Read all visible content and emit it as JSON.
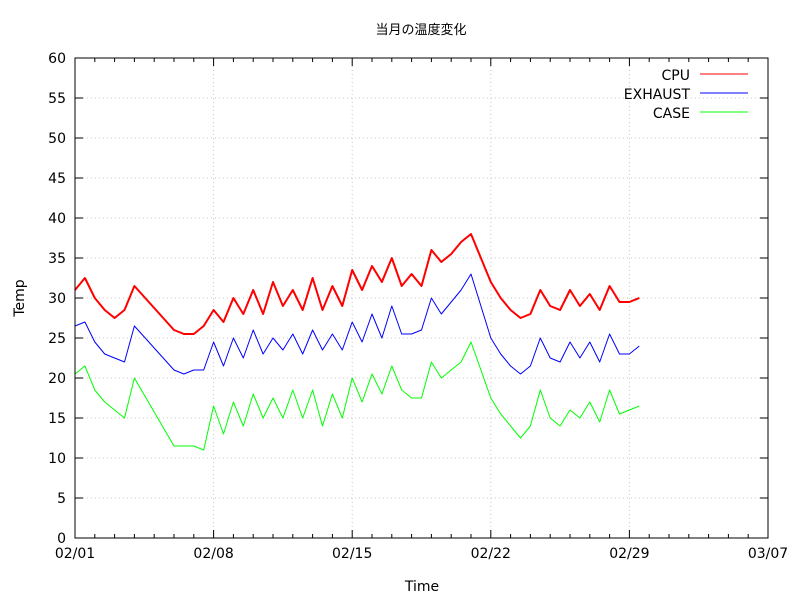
{
  "chart_data": {
    "type": "line",
    "title": "当月の温度変化",
    "xlabel": "Time",
    "ylabel": "Temp",
    "ylim": [
      0,
      60
    ],
    "xlim": [
      "2024-02-01",
      "2024-03-07"
    ],
    "yticks": [
      0,
      5,
      10,
      15,
      20,
      25,
      30,
      35,
      40,
      45,
      50,
      55,
      60
    ],
    "xtick_labels": [
      "02/01",
      "02/08",
      "02/15",
      "02/22",
      "02/29",
      "03/07"
    ],
    "grid": true,
    "legend_position": "top-right",
    "series": [
      {
        "name": "CPU",
        "color": "#ff0000",
        "points": [
          [
            "2024-02-01",
            31
          ],
          [
            "2024-02-01T12",
            32.5
          ],
          [
            "2024-02-02",
            30
          ],
          [
            "2024-02-02T12",
            28.5
          ],
          [
            "2024-02-03",
            27.5
          ],
          [
            "2024-02-03T12",
            28.5
          ],
          [
            "2024-02-04",
            31.5
          ],
          [
            "2024-02-06",
            26
          ],
          [
            "2024-02-06T12",
            25.5
          ],
          [
            "2024-02-07",
            25.5
          ],
          [
            "2024-02-07T12",
            26.5
          ],
          [
            "2024-02-08",
            28.5
          ],
          [
            "2024-02-08T12",
            27
          ],
          [
            "2024-02-09",
            30
          ],
          [
            "2024-02-09T12",
            28
          ],
          [
            "2024-02-10",
            31
          ],
          [
            "2024-02-10T12",
            28
          ],
          [
            "2024-02-11",
            32
          ],
          [
            "2024-02-11T12",
            29
          ],
          [
            "2024-02-12",
            31
          ],
          [
            "2024-02-12T12",
            28.5
          ],
          [
            "2024-02-13",
            32.5
          ],
          [
            "2024-02-13T12",
            28.5
          ],
          [
            "2024-02-14",
            31.5
          ],
          [
            "2024-02-14T12",
            29
          ],
          [
            "2024-02-15",
            33.5
          ],
          [
            "2024-02-15T12",
            31
          ],
          [
            "2024-02-16",
            34
          ],
          [
            "2024-02-16T12",
            32
          ],
          [
            "2024-02-17",
            35
          ],
          [
            "2024-02-17T12",
            31.5
          ],
          [
            "2024-02-18",
            33
          ],
          [
            "2024-02-18T12",
            31.5
          ],
          [
            "2024-02-19",
            36
          ],
          [
            "2024-02-19T12",
            34.5
          ],
          [
            "2024-02-20",
            35.5
          ],
          [
            "2024-02-20T12",
            37
          ],
          [
            "2024-02-21",
            38
          ],
          [
            "2024-02-21T12",
            35
          ],
          [
            "2024-02-22",
            32
          ],
          [
            "2024-02-22T12",
            30
          ],
          [
            "2024-02-23",
            28.5
          ],
          [
            "2024-02-23T12",
            27.5
          ],
          [
            "2024-02-24",
            28
          ],
          [
            "2024-02-24T12",
            31
          ],
          [
            "2024-02-25",
            29
          ],
          [
            "2024-02-25T12",
            28.5
          ],
          [
            "2024-02-26",
            31
          ],
          [
            "2024-02-26T12",
            29
          ],
          [
            "2024-02-27",
            30.5
          ],
          [
            "2024-02-27T12",
            28.5
          ],
          [
            "2024-02-28",
            31.5
          ],
          [
            "2024-02-28T12",
            29.5
          ],
          [
            "2024-02-29",
            29.5
          ],
          [
            "2024-02-29T12",
            30
          ]
        ]
      },
      {
        "name": "EXHAUST",
        "color": "#0000ff",
        "points": [
          [
            "2024-02-01",
            26.5
          ],
          [
            "2024-02-01T12",
            27
          ],
          [
            "2024-02-02",
            24.5
          ],
          [
            "2024-02-02T12",
            23
          ],
          [
            "2024-02-03",
            22.5
          ],
          [
            "2024-02-03T12",
            22
          ],
          [
            "2024-02-04",
            26.5
          ],
          [
            "2024-02-06",
            21
          ],
          [
            "2024-02-06T12",
            20.5
          ],
          [
            "2024-02-07",
            21
          ],
          [
            "2024-02-07T12",
            21
          ],
          [
            "2024-02-08",
            24.5
          ],
          [
            "2024-02-08T12",
            21.5
          ],
          [
            "2024-02-09",
            25
          ],
          [
            "2024-02-09T12",
            22.5
          ],
          [
            "2024-02-10",
            26
          ],
          [
            "2024-02-10T12",
            23
          ],
          [
            "2024-02-11",
            25
          ],
          [
            "2024-02-11T12",
            23.5
          ],
          [
            "2024-02-12",
            25.5
          ],
          [
            "2024-02-12T12",
            23
          ],
          [
            "2024-02-13",
            26
          ],
          [
            "2024-02-13T12",
            23.5
          ],
          [
            "2024-02-14",
            25.5
          ],
          [
            "2024-02-14T12",
            23.5
          ],
          [
            "2024-02-15",
            27
          ],
          [
            "2024-02-15T12",
            24.5
          ],
          [
            "2024-02-16",
            28
          ],
          [
            "2024-02-16T12",
            25
          ],
          [
            "2024-02-17",
            29
          ],
          [
            "2024-02-17T12",
            25.5
          ],
          [
            "2024-02-18",
            25.5
          ],
          [
            "2024-02-18T12",
            26
          ],
          [
            "2024-02-19",
            30
          ],
          [
            "2024-02-19T12",
            28
          ],
          [
            "2024-02-20",
            29.5
          ],
          [
            "2024-02-20T12",
            31
          ],
          [
            "2024-02-21",
            33
          ],
          [
            "2024-02-21T12",
            29
          ],
          [
            "2024-02-22",
            25
          ],
          [
            "2024-02-22T12",
            23
          ],
          [
            "2024-02-23",
            21.5
          ],
          [
            "2024-02-23T12",
            20.5
          ],
          [
            "2024-02-24",
            21.5
          ],
          [
            "2024-02-24T12",
            25
          ],
          [
            "2024-02-25",
            22.5
          ],
          [
            "2024-02-25T12",
            22
          ],
          [
            "2024-02-26",
            24.5
          ],
          [
            "2024-02-26T12",
            22.5
          ],
          [
            "2024-02-27",
            24.5
          ],
          [
            "2024-02-27T12",
            22
          ],
          [
            "2024-02-28",
            25.5
          ],
          [
            "2024-02-28T12",
            23
          ],
          [
            "2024-02-29",
            23
          ],
          [
            "2024-02-29T12",
            24
          ]
        ]
      },
      {
        "name": "CASE",
        "color": "#00ff00",
        "points": [
          [
            "2024-02-01",
            20.5
          ],
          [
            "2024-02-01T12",
            21.5
          ],
          [
            "2024-02-02",
            18.5
          ],
          [
            "2024-02-02T12",
            17
          ],
          [
            "2024-02-03",
            16
          ],
          [
            "2024-02-03T12",
            15
          ],
          [
            "2024-02-04",
            20
          ],
          [
            "2024-02-06",
            11.5
          ],
          [
            "2024-02-06T12",
            11.5
          ],
          [
            "2024-02-07",
            11.5
          ],
          [
            "2024-02-07T12",
            11
          ],
          [
            "2024-02-08",
            16.5
          ],
          [
            "2024-02-08T12",
            13
          ],
          [
            "2024-02-09",
            17
          ],
          [
            "2024-02-09T12",
            14
          ],
          [
            "2024-02-10",
            18
          ],
          [
            "2024-02-10T12",
            15
          ],
          [
            "2024-02-11",
            17.5
          ],
          [
            "2024-02-11T12",
            15
          ],
          [
            "2024-02-12",
            18.5
          ],
          [
            "2024-02-12T12",
            15
          ],
          [
            "2024-02-13",
            18.5
          ],
          [
            "2024-02-13T12",
            14
          ],
          [
            "2024-02-14",
            18
          ],
          [
            "2024-02-14T12",
            15
          ],
          [
            "2024-02-15",
            20
          ],
          [
            "2024-02-15T12",
            17
          ],
          [
            "2024-02-16",
            20.5
          ],
          [
            "2024-02-16T12",
            18
          ],
          [
            "2024-02-17",
            21.5
          ],
          [
            "2024-02-17T12",
            18.5
          ],
          [
            "2024-02-18",
            17.5
          ],
          [
            "2024-02-18T12",
            17.5
          ],
          [
            "2024-02-19",
            22
          ],
          [
            "2024-02-19T12",
            20
          ],
          [
            "2024-02-20",
            21
          ],
          [
            "2024-02-20T12",
            22
          ],
          [
            "2024-02-21",
            24.5
          ],
          [
            "2024-02-21T12",
            21
          ],
          [
            "2024-02-22",
            17.5
          ],
          [
            "2024-02-22T12",
            15.5
          ],
          [
            "2024-02-23",
            14
          ],
          [
            "2024-02-23T12",
            12.5
          ],
          [
            "2024-02-24",
            14
          ],
          [
            "2024-02-24T12",
            18.5
          ],
          [
            "2024-02-25",
            15
          ],
          [
            "2024-02-25T12",
            14
          ],
          [
            "2024-02-26",
            16
          ],
          [
            "2024-02-26T12",
            15
          ],
          [
            "2024-02-27",
            17
          ],
          [
            "2024-02-27T12",
            14.5
          ],
          [
            "2024-02-28",
            18.5
          ],
          [
            "2024-02-28T12",
            15.5
          ],
          [
            "2024-02-29",
            16
          ],
          [
            "2024-02-29T12",
            16.5
          ]
        ]
      }
    ]
  }
}
